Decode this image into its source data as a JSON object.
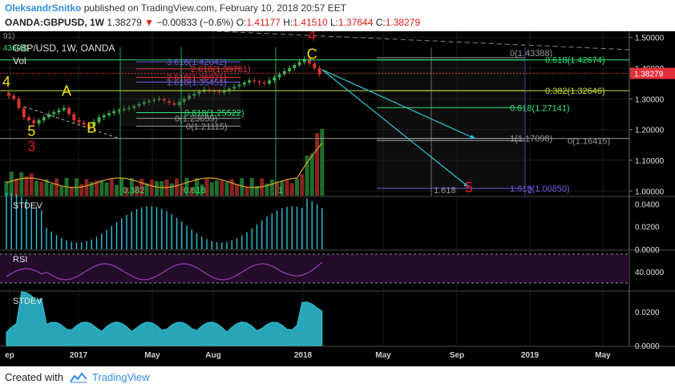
{
  "header": {
    "author": "OleksandrSnitko",
    "published_text": "published on TradingView.com, February 10, 2018 20:57 EET",
    "symbol": "OANDA:GBPUSD, 1W",
    "last": "1.38279",
    "change": "−0.00833 (−0.6%)",
    "o_label": "O:",
    "o_value": "1.41177",
    "h_label": "H:",
    "h_value": "1.41510",
    "l_label": "L:",
    "l_value": "1.37644",
    "c_label": "C:",
    "c_value": "1.38279"
  },
  "footer": {
    "created_with": "Created with",
    "brand": "TradingView"
  },
  "colors": {
    "bg": "#000000",
    "up": "#3fb34f",
    "down": "#d5342f",
    "fib_green": "#2ee37b",
    "fib_yellow": "#c8e03a",
    "fib_red": "#e3313b",
    "fib_purple": "#6f5de0",
    "wave_yellow": "#f5e400",
    "wave_red": "#e3141c",
    "projection": "#2fc3d8",
    "stdev": "#2fc3d8",
    "rsi": "#9c3db7",
    "price_tag": "#e3313b"
  },
  "chart_data": [
    {
      "type": "candlestick",
      "title": "GBP/USD, 1W, OANDA",
      "volume_label": "Vol",
      "x_ticks": [
        "ep",
        "2017",
        "May",
        "Aug",
        "2018",
        "May",
        "Sep",
        "2019",
        "May"
      ],
      "y_ticks": [
        "1.50000",
        "1.40000",
        "1.30000",
        "1.20000",
        "1.10000",
        "1.00000"
      ],
      "ylim": [
        0.985,
        1.52
      ],
      "last_price_label": "1.38279",
      "price_path": [
        {
          "t": 0,
          "v": 1.32
        },
        {
          "t": 2,
          "v": 1.3
        },
        {
          "t": 4,
          "v": 1.24
        },
        {
          "t": 6,
          "v": 1.22
        },
        {
          "t": 9,
          "v": 1.25
        },
        {
          "t": 12,
          "v": 1.27
        },
        {
          "t": 14,
          "v": 1.23
        },
        {
          "t": 17,
          "v": 1.21
        },
        {
          "t": 19,
          "v": 1.24
        },
        {
          "t": 22,
          "v": 1.26
        },
        {
          "t": 25,
          "v": 1.27
        },
        {
          "t": 28,
          "v": 1.29
        },
        {
          "t": 31,
          "v": 1.3
        },
        {
          "t": 34,
          "v": 1.28
        },
        {
          "t": 37,
          "v": 1.31
        },
        {
          "t": 40,
          "v": 1.33
        },
        {
          "t": 43,
          "v": 1.32
        },
        {
          "t": 46,
          "v": 1.34
        },
        {
          "t": 49,
          "v": 1.36
        },
        {
          "t": 52,
          "v": 1.35
        },
        {
          "t": 55,
          "v": 1.38
        },
        {
          "t": 58,
          "v": 1.41
        },
        {
          "t": 60,
          "v": 1.43
        },
        {
          "t": 62,
          "v": 1.4
        },
        {
          "t": 63,
          "v": 1.38
        }
      ],
      "wave_labels": [
        {
          "text": "4",
          "color": "yellow",
          "t": 0,
          "v": 1.34
        },
        {
          "text": "A",
          "color": "yellow",
          "t": 12,
          "v": 1.31
        },
        {
          "text": "5",
          "color": "yellow",
          "t": 5,
          "v": 1.18
        },
        {
          "text": "3",
          "color": "red",
          "t": 5,
          "v": 1.13
        },
        {
          "text": "B",
          "color": "yellow",
          "t": 17,
          "v": 1.19
        },
        {
          "text": "4",
          "color": "red",
          "t": 61,
          "v": 1.49
        },
        {
          "text": "C",
          "color": "yellow",
          "t": 61,
          "v": 1.43
        },
        {
          "text": "5",
          "color": "red",
          "t": 95,
          "v": 0.995
        }
      ],
      "fib_levels": [
        {
          "text": "0.618(1.42674)",
          "v": 1.42674,
          "color": "green"
        },
        {
          "text": "0(1.43388)",
          "v": 1.43388,
          "color": "grey"
        },
        {
          "text": "0.382(1.32646)",
          "v": 1.32646,
          "color": "yellow"
        },
        {
          "text": "0.618(1.27141)",
          "v": 1.27141,
          "color": "green"
        },
        {
          "text": "1(1.17098)",
          "v": 1.17098,
          "color": "grey"
        },
        {
          "text": "0(1.16415)",
          "v": 1.16415,
          "color": "grey"
        },
        {
          "text": "1.618(1.00850)",
          "v": 1.0085,
          "color": "purple"
        }
      ],
      "left_fib_labels": [
        {
          "text": "3.618(1.42042)",
          "v": 1.42042,
          "color": "purple"
        },
        {
          "text": "2.618(1.39781)",
          "v": 1.39781,
          "color": "red"
        },
        {
          "text": "2.618(1.36971)",
          "v": 1.36971,
          "color": "red"
        },
        {
          "text": "1.618(1.35451)",
          "v": 1.35451,
          "color": "purple"
        },
        {
          "text": "0.618(1.25522)",
          "v": 1.25522,
          "color": "green"
        },
        {
          "text": "0(1.23659)",
          "v": 1.23659,
          "color": "grey"
        },
        {
          "text": "0(1.21115)",
          "v": 1.21115,
          "color": "grey"
        }
      ],
      "time_fib_labels": [
        "0.382",
        "0.618",
        "1",
        "1.618",
        "2"
      ],
      "corner_labels": [
        "91)",
        "43604)"
      ]
    },
    {
      "type": "area",
      "title": "STDEV",
      "y_ticks": [
        "0.0400",
        "0.0200",
        "0.0000"
      ]
    },
    {
      "type": "line",
      "title": "RSI",
      "y_ticks": [
        "40.0000"
      ]
    },
    {
      "type": "area",
      "title": "STDEV",
      "y_ticks": [
        "0.0200",
        "0.0000"
      ]
    }
  ]
}
